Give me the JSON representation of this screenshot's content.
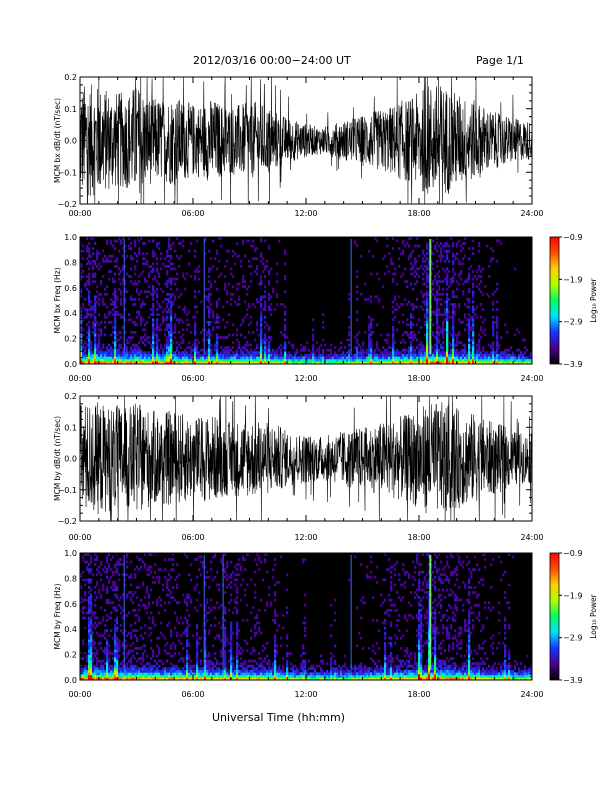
{
  "header": {
    "title": "2012/03/16  00:00−24:00 UT",
    "page_label": "Page 1/1"
  },
  "xlabel": "Universal Time (hh:mm)",
  "chart_data": [
    {
      "type": "line",
      "ylabel": "MCM bx dB/dt (nT/sec)",
      "xlim": [
        0,
        24
      ],
      "ylim": [
        -0.2,
        0.2
      ],
      "x_ticks": [
        "00:00",
        "06:00",
        "12:00",
        "18:00",
        "24:00"
      ],
      "y_ticks": [
        "−0.2",
        "−0.1",
        "0.0",
        "0.1",
        "0.2"
      ],
      "envelope": {
        "hours": [
          0,
          0.5,
          1,
          1.5,
          2,
          2.5,
          3,
          3.5,
          4,
          4.5,
          5,
          5.5,
          6,
          6.5,
          7,
          7.5,
          8,
          8.5,
          9,
          9.5,
          10,
          10.5,
          11,
          11.5,
          12,
          12.5,
          13,
          13.5,
          14,
          14.5,
          15,
          15.5,
          16,
          16.5,
          17,
          17.5,
          18,
          18.5,
          19,
          19.5,
          20,
          20.5,
          21,
          21.5,
          22,
          22.5,
          23,
          23.5,
          24
        ],
        "amplitude": [
          0.2,
          0.2,
          0.19,
          0.18,
          0.17,
          0.17,
          0.2,
          0.16,
          0.15,
          0.15,
          0.16,
          0.14,
          0.13,
          0.13,
          0.15,
          0.13,
          0.12,
          0.13,
          0.13,
          0.14,
          0.12,
          0.1,
          0.08,
          0.07,
          0.06,
          0.05,
          0.05,
          0.06,
          0.07,
          0.08,
          0.09,
          0.1,
          0.11,
          0.12,
          0.14,
          0.15,
          0.17,
          0.2,
          0.2,
          0.19,
          0.17,
          0.15,
          0.14,
          0.12,
          0.1,
          0.09,
          0.08,
          0.07,
          0.07
        ]
      }
    },
    {
      "type": "heatmap",
      "ylabel": "MCM bx Freq (Hz)",
      "xlim": [
        0,
        24
      ],
      "ylim": [
        0,
        1.0
      ],
      "x_ticks": [
        "00:00",
        "06:00",
        "12:00",
        "18:00",
        "24:00"
      ],
      "y_ticks": [
        "0.0",
        "0.2",
        "0.4",
        "0.6",
        "0.8",
        "1.0"
      ],
      "colorbar": {
        "label": "Log₁₀ Power",
        "range": [
          -3.9,
          -0.9
        ],
        "ticks": [
          "−0.9",
          "−1.9",
          "−2.9",
          "−3.9"
        ],
        "colors": [
          "#000000",
          "#4a0088",
          "#1a33ff",
          "#00e0ff",
          "#00ff60",
          "#b0ff00",
          "#ffd000",
          "#ff5000",
          "#ff0000"
        ]
      },
      "vertical_lines_hours": [
        2.35,
        6.6,
        14.4,
        18.6
      ]
    },
    {
      "type": "line",
      "ylabel": "MCM by dB/dt (nT/sec)",
      "xlim": [
        0,
        24
      ],
      "ylim": [
        -0.2,
        0.2
      ],
      "x_ticks": [
        "00:00",
        "06:00",
        "12:00",
        "18:00",
        "24:00"
      ],
      "y_ticks": [
        "−0.2",
        "−0.1",
        "0.0",
        "0.1",
        "0.2"
      ],
      "envelope": {
        "hours": [
          0,
          0.5,
          1,
          1.5,
          2,
          2.5,
          3,
          3.5,
          4,
          4.5,
          5,
          5.5,
          6,
          6.5,
          7,
          7.5,
          8,
          8.5,
          9,
          9.5,
          10,
          10.5,
          11,
          11.5,
          12,
          12.5,
          13,
          13.5,
          14,
          14.5,
          15,
          15.5,
          16,
          16.5,
          17,
          17.5,
          18,
          18.5,
          19,
          19.5,
          20,
          20.5,
          21,
          21.5,
          22,
          22.5,
          23,
          23.5,
          24
        ],
        "amplitude": [
          0.2,
          0.2,
          0.2,
          0.19,
          0.19,
          0.18,
          0.2,
          0.18,
          0.17,
          0.17,
          0.17,
          0.16,
          0.15,
          0.15,
          0.16,
          0.14,
          0.13,
          0.14,
          0.14,
          0.14,
          0.13,
          0.12,
          0.1,
          0.09,
          0.09,
          0.08,
          0.08,
          0.09,
          0.1,
          0.11,
          0.11,
          0.12,
          0.13,
          0.14,
          0.15,
          0.16,
          0.18,
          0.2,
          0.2,
          0.2,
          0.18,
          0.17,
          0.16,
          0.14,
          0.13,
          0.12,
          0.1,
          0.09,
          0.09
        ]
      }
    },
    {
      "type": "heatmap",
      "ylabel": "MCM by Freq (Hz)",
      "xlim": [
        0,
        24
      ],
      "ylim": [
        0,
        1.0
      ],
      "x_ticks": [
        "00:00",
        "06:00",
        "12:00",
        "18:00",
        "24:00"
      ],
      "y_ticks": [
        "0.0",
        "0.2",
        "0.4",
        "0.6",
        "0.8",
        "1.0"
      ],
      "colorbar": {
        "label": "Log₁₀ Power",
        "range": [
          -3.9,
          -0.9
        ],
        "ticks": [
          "−0.9",
          "−1.9",
          "−2.9",
          "−3.9"
        ],
        "colors": [
          "#000000",
          "#4a0088",
          "#1a33ff",
          "#00e0ff",
          "#00ff60",
          "#b0ff00",
          "#ffd000",
          "#ff5000",
          "#ff0000"
        ]
      },
      "vertical_lines_hours": [
        2.35,
        6.6,
        7.6,
        14.4,
        18.6
      ]
    }
  ]
}
